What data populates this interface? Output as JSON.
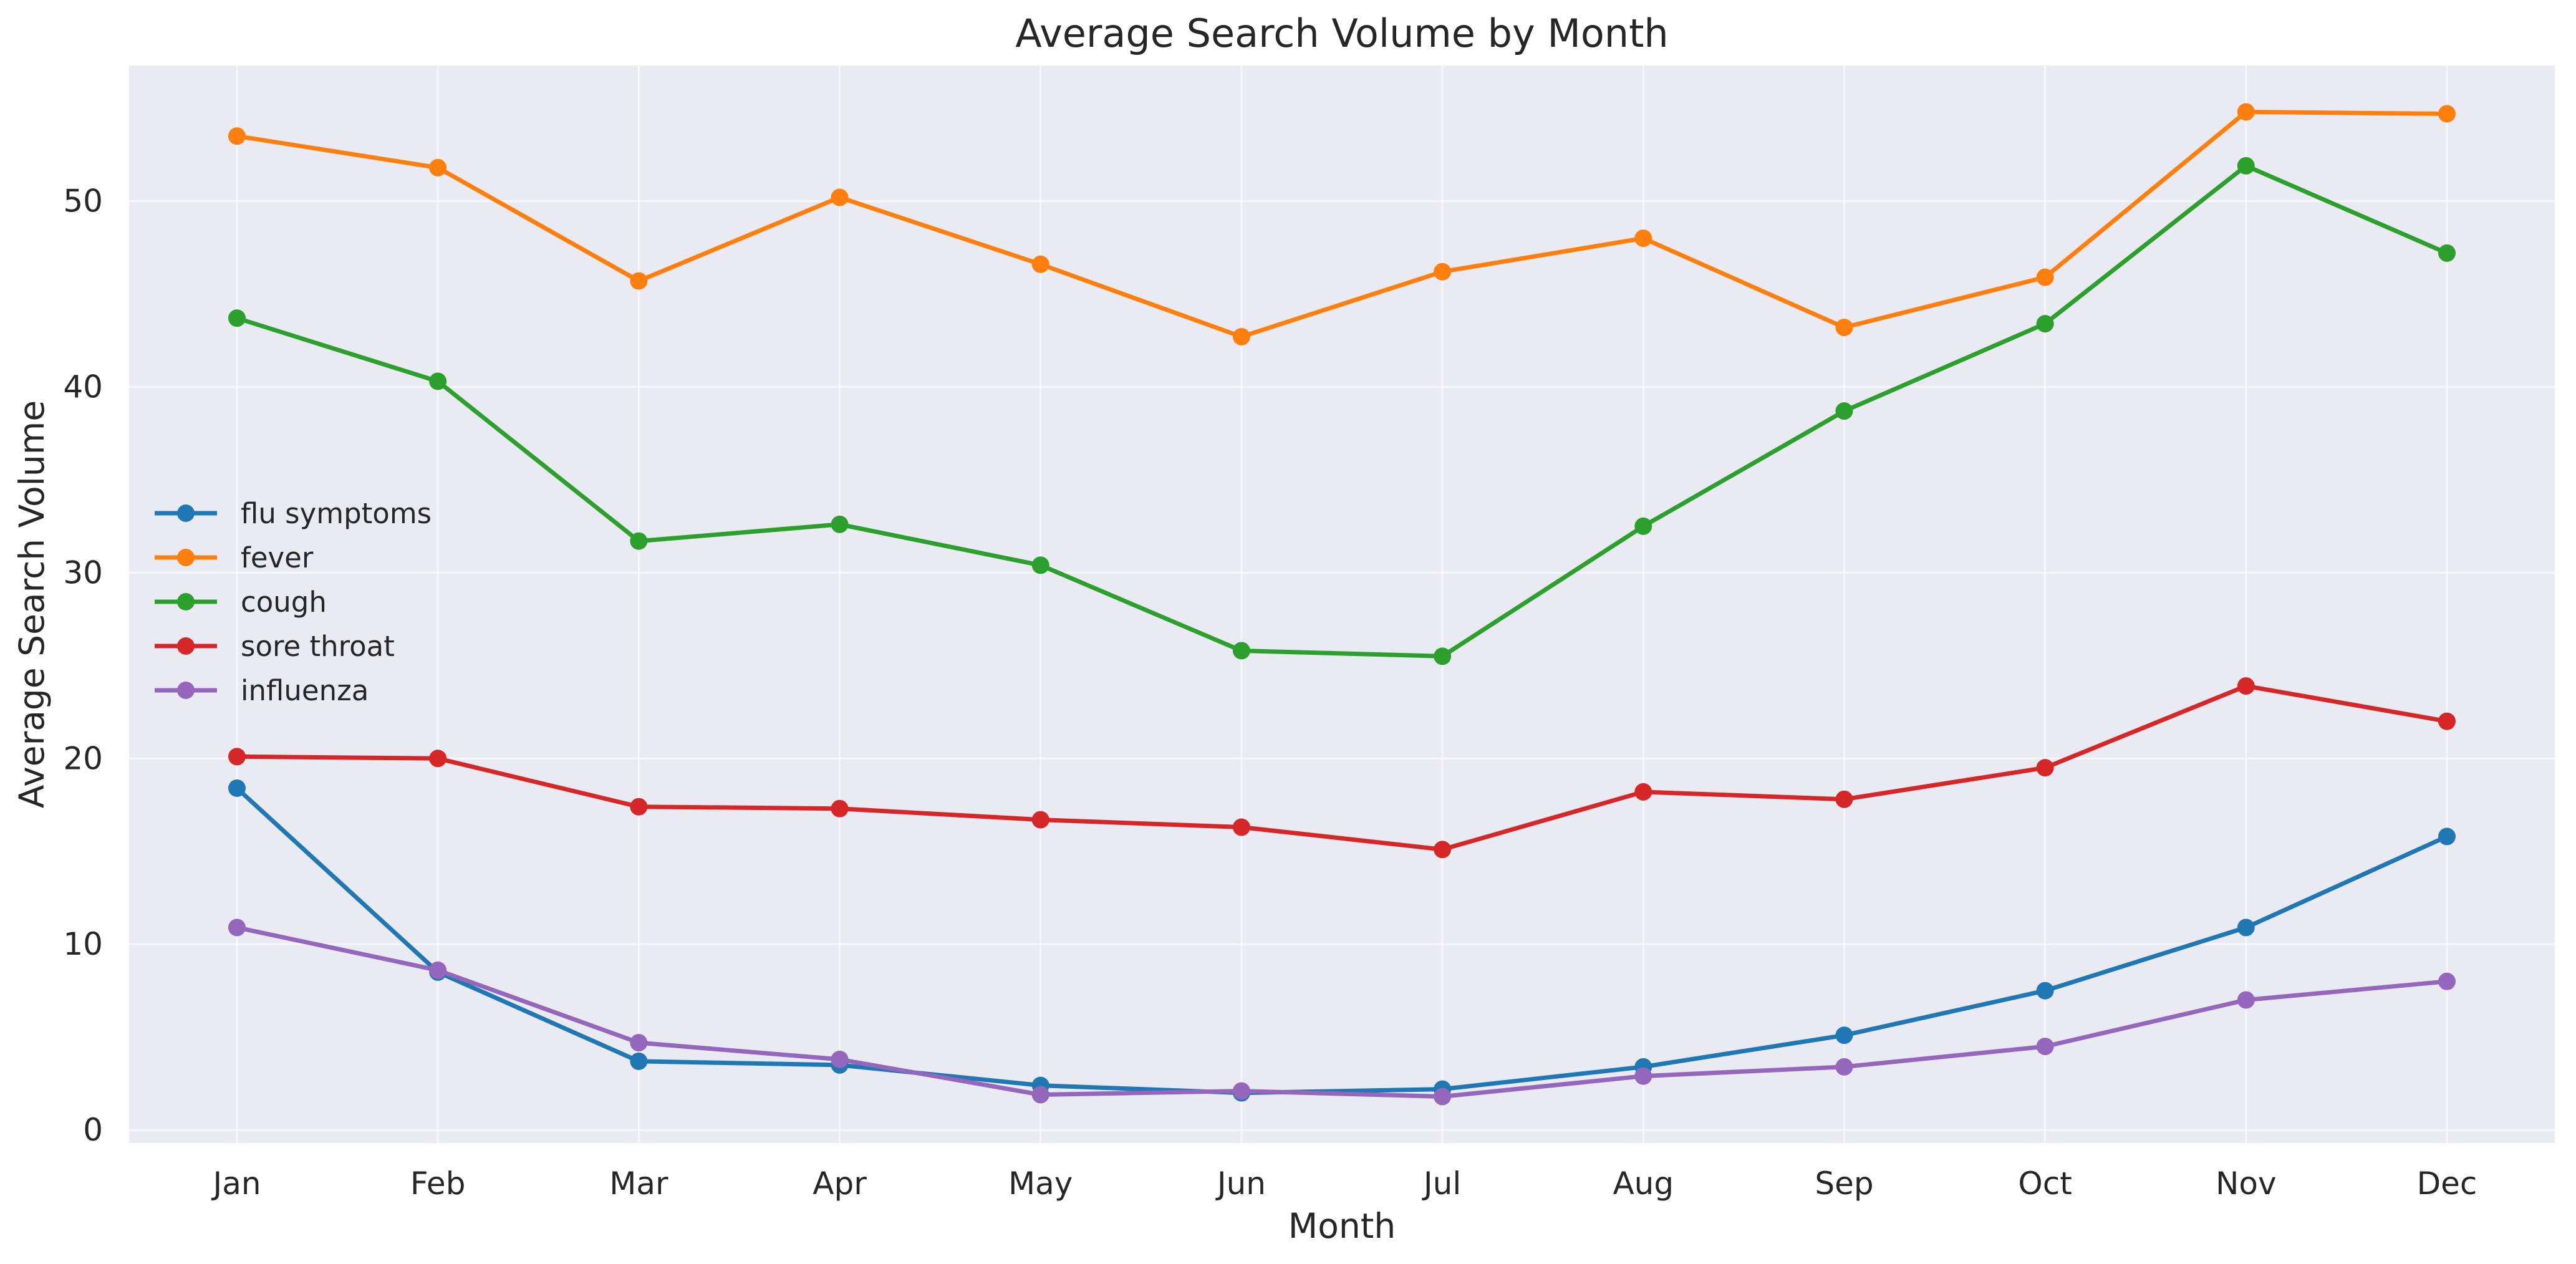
{
  "chart_data": {
    "type": "line",
    "title": "Average Search Volume by Month",
    "xlabel": "Month",
    "ylabel": "Average Search Volume",
    "categories": [
      "Jan",
      "Feb",
      "Mar",
      "Apr",
      "May",
      "Jun",
      "Jul",
      "Aug",
      "Sep",
      "Oct",
      "Nov",
      "Dec"
    ],
    "ylim": [
      -0.7,
      57.3
    ],
    "yticks": [
      0,
      10,
      20,
      30,
      40,
      50
    ],
    "grid": true,
    "legend_position": "center-left",
    "series": [
      {
        "name": "flu symptoms",
        "color": "#1f77b4",
        "values": [
          18.4,
          8.5,
          3.7,
          3.5,
          2.4,
          2.0,
          2.2,
          3.4,
          5.1,
          7.5,
          10.9,
          15.8
        ]
      },
      {
        "name": "fever",
        "color": "#ff7f0e",
        "values": [
          53.5,
          51.8,
          45.7,
          50.2,
          46.6,
          42.7,
          46.2,
          48.0,
          43.2,
          45.9,
          54.8,
          54.7
        ]
      },
      {
        "name": "cough",
        "color": "#2ca02c",
        "values": [
          43.7,
          40.3,
          31.7,
          32.6,
          30.4,
          25.8,
          25.5,
          32.5,
          38.7,
          43.4,
          51.9,
          47.2
        ]
      },
      {
        "name": "sore throat",
        "color": "#d62728",
        "values": [
          20.1,
          20.0,
          17.4,
          17.3,
          16.7,
          16.3,
          15.1,
          18.2,
          17.8,
          19.5,
          23.9,
          22.0
        ]
      },
      {
        "name": "influenza",
        "color": "#9467bd",
        "values": [
          10.9,
          8.6,
          4.7,
          3.8,
          1.9,
          2.1,
          1.8,
          2.9,
          3.4,
          4.5,
          7.0,
          8.0
        ]
      }
    ]
  }
}
